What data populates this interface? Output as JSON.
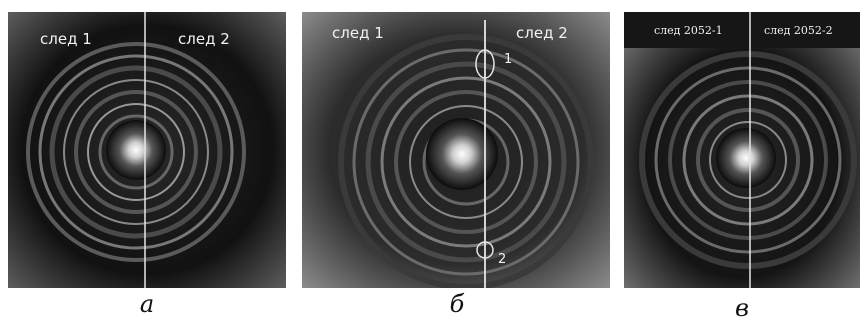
{
  "panels": [
    {
      "caption": "а",
      "left_label": "след 1",
      "right_label": "след 2"
    },
    {
      "caption": "б",
      "left_label": "след 1",
      "right_label": "след 2",
      "markers": [
        "1",
        "2"
      ]
    },
    {
      "caption": "в",
      "left_label": "след 2052-1",
      "right_label": "след 2052-2"
    }
  ]
}
